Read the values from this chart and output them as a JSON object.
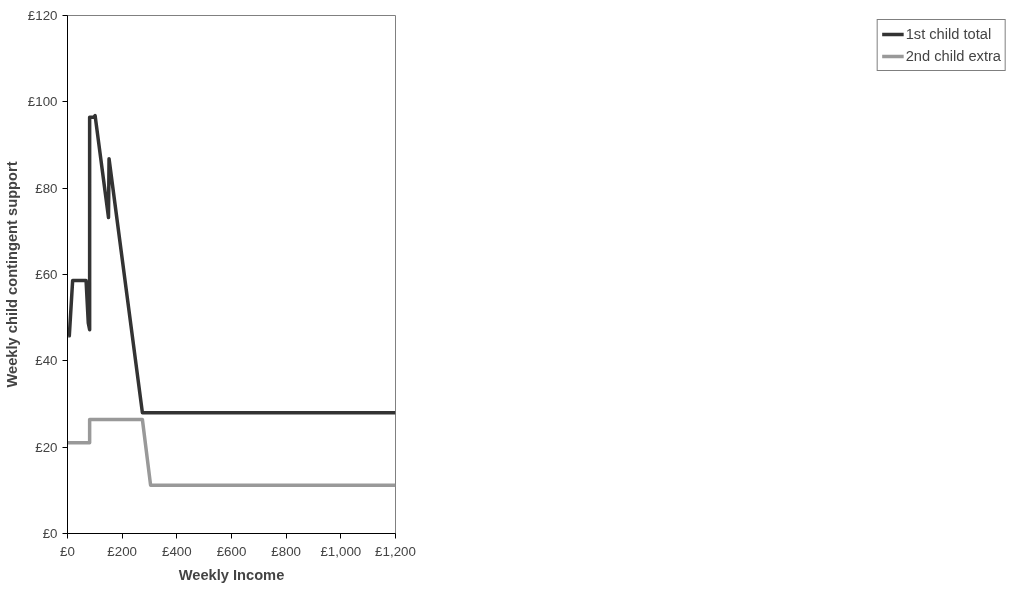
{
  "chart_data": {
    "type": "line",
    "xlabel": "Weekly Income",
    "ylabel": "Weekly child contingent support",
    "xlim": [
      0,
      1200
    ],
    "ylim": [
      0,
      120
    ],
    "xticks": [
      {
        "value": 0,
        "label": "£0"
      },
      {
        "value": 200,
        "label": "£200"
      },
      {
        "value": 400,
        "label": "£400"
      },
      {
        "value": 600,
        "label": "£600"
      },
      {
        "value": 800,
        "label": "£800"
      },
      {
        "value": 1000,
        "label": "£1,000"
      },
      {
        "value": 1200,
        "label": "£1,200"
      }
    ],
    "yticks": [
      {
        "value": 0,
        "label": "£0"
      },
      {
        "value": 20,
        "label": "£20"
      },
      {
        "value": 40,
        "label": "£40"
      },
      {
        "value": 60,
        "label": "£60"
      },
      {
        "value": 80,
        "label": "£80"
      },
      {
        "value": 100,
        "label": "£100"
      },
      {
        "value": 120,
        "label": "£120"
      }
    ],
    "grid": false,
    "legend": "right",
    "marker": "none",
    "line_style": "solid",
    "series": [
      {
        "name": "1st child total",
        "color": "#333333",
        "x": [
          2.5,
          6.6,
          18.8,
          68,
          76,
          81,
          81,
          96,
          101,
          150,
          152,
          274,
          1200
        ],
        "values": [
          45.8,
          45.8,
          58.6,
          58.6,
          48.8,
          47.2,
          96.4,
          96.4,
          96.8,
          73.2,
          86.8,
          28,
          28
        ]
      },
      {
        "name": "2nd child extra",
        "color": "#999999",
        "x": [
          0,
          81,
          81,
          274,
          304,
          1200
        ],
        "values": [
          21,
          21,
          26.4,
          26.4,
          11.2,
          11.2
        ]
      }
    ]
  }
}
